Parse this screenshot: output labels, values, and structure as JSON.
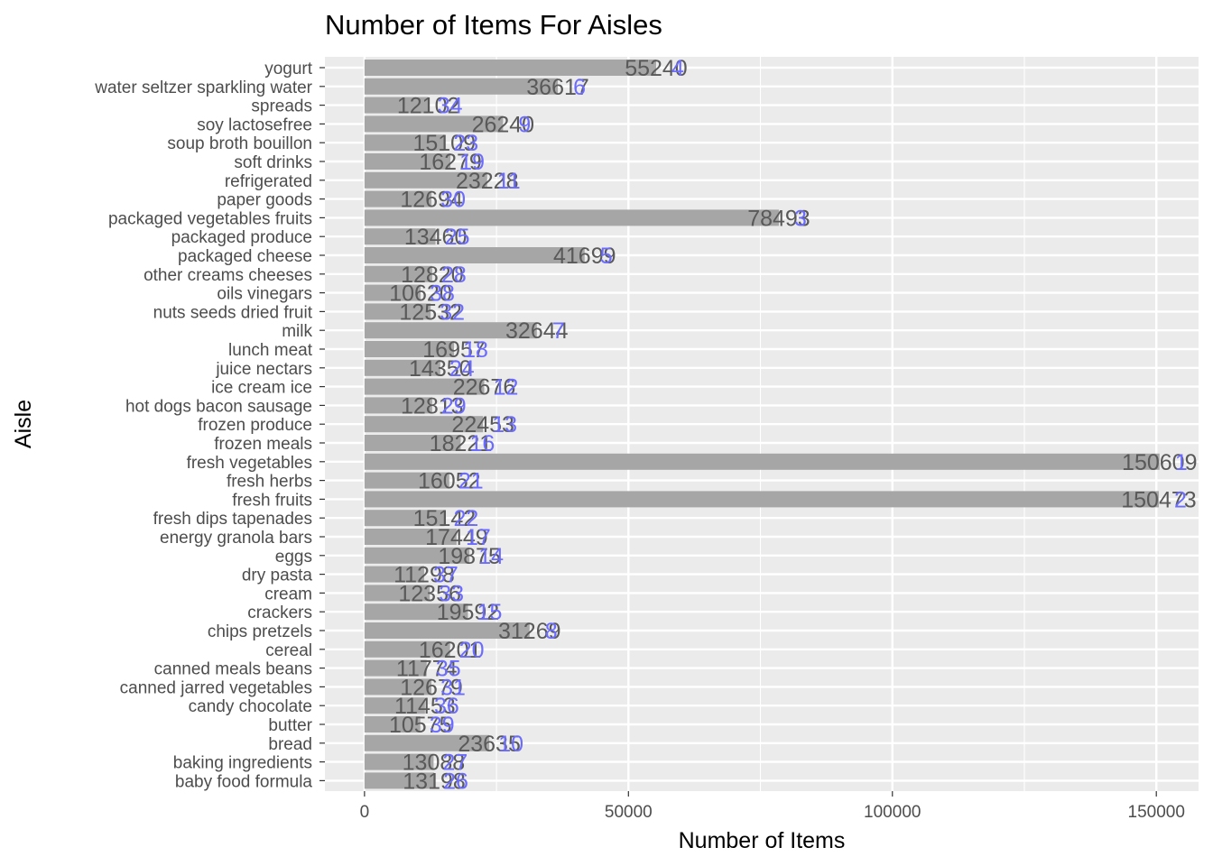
{
  "chart_data": {
    "type": "bar",
    "orientation": "horizontal",
    "title": "Number of Items For Aisles",
    "xlabel": "Number of Items",
    "ylabel": "Aisle",
    "xlim": [
      -7500,
      158000
    ],
    "xticks": [
      0,
      50000,
      100000,
      150000
    ],
    "grid": true,
    "colors": {
      "panel": "#ebebeb",
      "grid": "#ffffff",
      "bar": "#a6a6a6",
      "value_label": "#595959",
      "rank_label": "#6b6bff"
    },
    "categories": [
      "yogurt",
      "water seltzer sparkling water",
      "spreads",
      "soy lactosefree",
      "soup broth bouillon",
      "soft drinks",
      "refrigerated",
      "paper goods",
      "packaged vegetables fruits",
      "packaged produce",
      "packaged cheese",
      "other creams cheeses",
      "oils vinegars",
      "nuts seeds dried fruit",
      "milk",
      "lunch meat",
      "juice nectars",
      "ice cream ice",
      "hot dogs bacon sausage",
      "frozen produce",
      "frozen meals",
      "fresh vegetables",
      "fresh herbs",
      "fresh fruits",
      "fresh dips tapenades",
      "energy granola bars",
      "eggs",
      "dry pasta",
      "cream",
      "crackers",
      "chips pretzels",
      "cereal",
      "canned meals beans",
      "canned jarred vegetables",
      "candy chocolate",
      "butter",
      "bread",
      "baking ingredients",
      "baby food formula"
    ],
    "values": [
      55240,
      36617,
      12102,
      26240,
      15109,
      16279,
      23228,
      12694,
      78493,
      13460,
      41699,
      12820,
      10620,
      12532,
      32644,
      16957,
      14350,
      22676,
      12813,
      22453,
      18221,
      150609,
      16052,
      150473,
      15142,
      17449,
      19875,
      11298,
      12356,
      19592,
      31269,
      16201,
      11774,
      12679,
      11453,
      10575,
      23635,
      13088,
      13198
    ],
    "value_labels": [
      "55240",
      "36617",
      "12102",
      "26240",
      "15109",
      "16279",
      "23228",
      "12694",
      "78493",
      "13460",
      "41699",
      "12820",
      "10620",
      "12532",
      "32644",
      "16957",
      "14350",
      "22676",
      "12813",
      "22453",
      "18221",
      "150609",
      "16052",
      "150473",
      "15142",
      "17449",
      "19875",
      "11298",
      "12356",
      "19592",
      "31269",
      "16201",
      "11774",
      "12679",
      "11453",
      "10575",
      "23635",
      "13088",
      "13198"
    ],
    "rank_labels": [
      "4",
      "6",
      "34",
      "9",
      "23",
      "19",
      "11",
      "30",
      "3",
      "25",
      "5",
      "28",
      "38",
      "32",
      "7",
      "18",
      "24",
      "12",
      "29",
      "13",
      "16",
      "1",
      "21",
      "2",
      "22",
      "17",
      "14",
      "37",
      "33",
      "15",
      "8",
      "20",
      "35",
      "31",
      "36",
      "39",
      "10",
      "27",
      "26"
    ]
  }
}
